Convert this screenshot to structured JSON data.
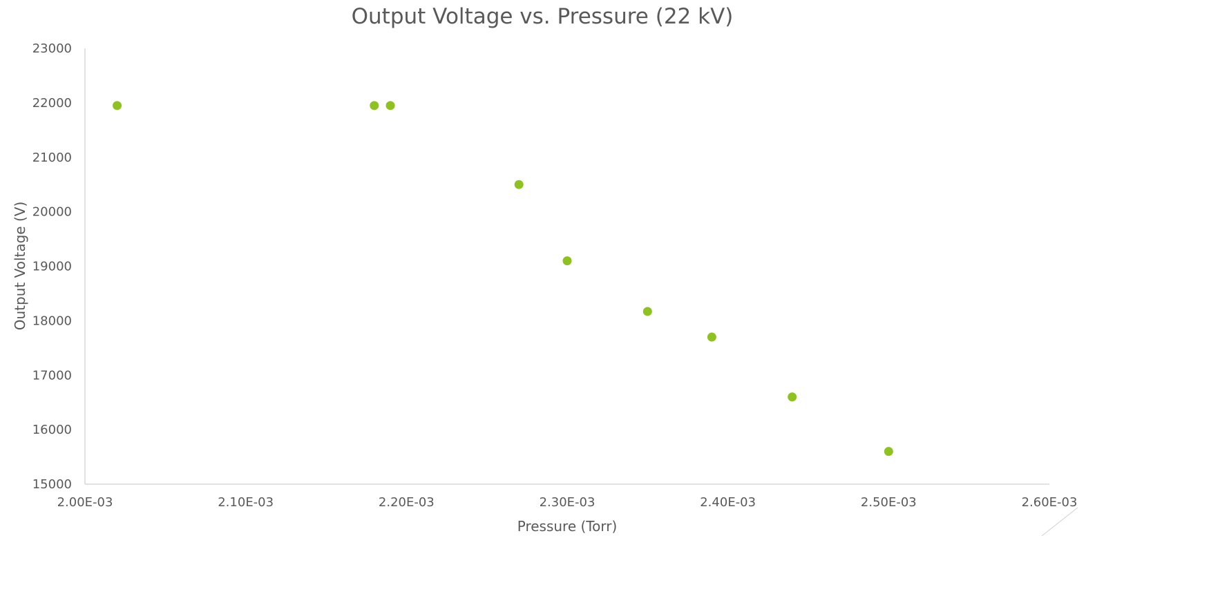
{
  "chart_data": {
    "type": "scatter",
    "title": "Output Voltage vs. Pressure (22 kV)",
    "xlabel": "Pressure (Torr)",
    "ylabel": "Output Voltage (V)",
    "xlim": [
      0.002,
      0.0026
    ],
    "ylim": [
      15000,
      23000
    ],
    "x_ticks": [
      0.002,
      0.0021,
      0.0022,
      0.0023,
      0.0024,
      0.0025,
      0.0026
    ],
    "x_tick_labels": [
      "2.00E-03",
      "2.10E-03",
      "2.20E-03",
      "2.30E-03",
      "2.40E-03",
      "2.50E-03",
      "2.60E-03"
    ],
    "y_ticks": [
      15000,
      16000,
      17000,
      18000,
      19000,
      20000,
      21000,
      22000,
      23000
    ],
    "y_tick_labels": [
      "15000",
      "16000",
      "17000",
      "18000",
      "19000",
      "20000",
      "21000",
      "22000",
      "23000"
    ],
    "grid": false,
    "legend": "none",
    "marker_color": "#8DC21F",
    "series": [
      {
        "points": [
          {
            "x": 0.00202,
            "y": 21950
          },
          {
            "x": 0.00218,
            "y": 21950
          },
          {
            "x": 0.00219,
            "y": 21950
          },
          {
            "x": 0.00227,
            "y": 20500
          },
          {
            "x": 0.0023,
            "y": 19100
          },
          {
            "x": 0.00235,
            "y": 18170
          },
          {
            "x": 0.00239,
            "y": 17700
          },
          {
            "x": 0.00244,
            "y": 16600
          },
          {
            "x": 0.0025,
            "y": 15600
          }
        ]
      }
    ]
  }
}
